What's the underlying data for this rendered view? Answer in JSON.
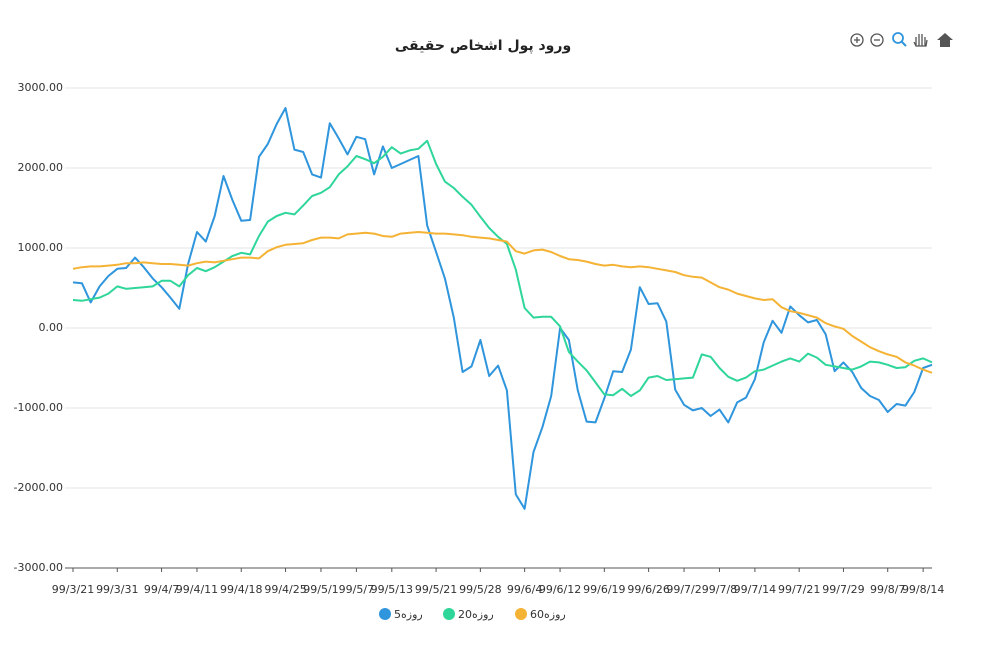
{
  "chart_data": {
    "type": "line",
    "title": "ورود پول اشخاص حقیقی",
    "categories": [
      "99/3/21",
      null,
      null,
      null,
      null,
      "99/3/31",
      null,
      null,
      null,
      null,
      "99/4/7",
      null,
      null,
      null,
      "99/4/11",
      null,
      null,
      null,
      null,
      "99/4/18",
      null,
      null,
      null,
      null,
      "99/4/25",
      null,
      null,
      null,
      "99/5/1",
      null,
      null,
      null,
      "99/5/7",
      null,
      null,
      null,
      "99/5/13",
      null,
      null,
      null,
      null,
      "99/5/21",
      null,
      null,
      null,
      null,
      "99/5/28",
      null,
      null,
      null,
      null,
      "99/6/4",
      null,
      null,
      null,
      "99/6/12",
      null,
      null,
      null,
      null,
      "99/6/19",
      null,
      null,
      null,
      null,
      "99/6/26",
      null,
      null,
      null,
      "99/7/2",
      null,
      null,
      null,
      "99/7/8",
      null,
      null,
      null,
      "99/7/14",
      null,
      null,
      null,
      null,
      "99/7/21",
      null,
      null,
      null,
      null,
      "99/7/29",
      null,
      null,
      null,
      null,
      "99/8/7",
      null,
      null,
      null,
      "99/8/14",
      null
    ],
    "series": [
      {
        "name": "روزه5",
        "color": "#2f95dc",
        "values": [
          570,
          560,
          320,
          520,
          650,
          740,
          750,
          880,
          760,
          620,
          510,
          380,
          240,
          800,
          1200,
          1080,
          1400,
          1900,
          1600,
          1340,
          1350,
          2140,
          2300,
          2550,
          2750,
          2230,
          2200,
          1920,
          1880,
          2560,
          2370,
          2170,
          2390,
          2360,
          1920,
          2270,
          2000,
          2050,
          2100,
          2150,
          1280,
          950,
          620,
          130,
          -550,
          -480,
          -150,
          -600,
          -470,
          -780,
          -2080,
          -2260,
          -1550,
          -1240,
          -850,
          0,
          -150,
          -780,
          -1170,
          -1180,
          -880,
          -540,
          -550,
          -270,
          510,
          300,
          310,
          80,
          -770,
          -960,
          -1030,
          -1000,
          -1100,
          -1020,
          -1180,
          -930,
          -870,
          -640,
          -180,
          90,
          -60,
          270,
          160,
          70,
          100,
          -80,
          -540,
          -430,
          -550,
          -750,
          -850,
          -900,
          -1050,
          -950,
          -970,
          -800,
          -500,
          -460
        ]
      },
      {
        "name": "روزه20",
        "color": "#2fd69a",
        "values": [
          350,
          340,
          360,
          380,
          430,
          520,
          490,
          500,
          510,
          520,
          590,
          590,
          520,
          660,
          750,
          710,
          760,
          830,
          900,
          940,
          920,
          1150,
          1330,
          1400,
          1440,
          1420,
          1530,
          1650,
          1690,
          1760,
          1920,
          2020,
          2150,
          2110,
          2060,
          2140,
          2260,
          2180,
          2220,
          2240,
          2340,
          2050,
          1830,
          1750,
          1640,
          1540,
          1390,
          1250,
          1140,
          1050,
          730,
          250,
          130,
          140,
          140,
          20,
          -300,
          -420,
          -530,
          -680,
          -830,
          -840,
          -760,
          -850,
          -780,
          -620,
          -600,
          -650,
          -640,
          -630,
          -620,
          -330,
          -360,
          -500,
          -610,
          -660,
          -620,
          -540,
          -520,
          -470,
          -420,
          -380,
          -420,
          -320,
          -370,
          -460,
          -480,
          -500,
          -520,
          -480,
          -420,
          -430,
          -460,
          -500,
          -490,
          -410,
          -380,
          -430
        ]
      },
      {
        "name": "روزه60",
        "color": "#f5b335",
        "values": [
          740,
          760,
          770,
          770,
          780,
          790,
          810,
          810,
          820,
          810,
          800,
          800,
          790,
          780,
          810,
          830,
          820,
          840,
          860,
          880,
          880,
          870,
          960,
          1010,
          1040,
          1050,
          1060,
          1100,
          1130,
          1130,
          1120,
          1170,
          1180,
          1190,
          1180,
          1150,
          1140,
          1180,
          1190,
          1200,
          1190,
          1180,
          1180,
          1170,
          1160,
          1140,
          1130,
          1120,
          1100,
          1080,
          960,
          930,
          970,
          980,
          950,
          900,
          860,
          850,
          830,
          800,
          780,
          790,
          770,
          760,
          770,
          760,
          740,
          720,
          700,
          660,
          640,
          630,
          570,
          510,
          480,
          430,
          400,
          370,
          350,
          360,
          260,
          210,
          190,
          160,
          130,
          60,
          20,
          -10,
          -100,
          -170,
          -240,
          -290,
          -330,
          -360,
          -430,
          -470,
          -520,
          -560
        ]
      }
    ],
    "ylim": [
      -3000,
      3000
    ],
    "yticks": [
      {
        "value": -3000,
        "label": "-3000.00"
      },
      {
        "value": -2000,
        "label": "-2000.00"
      },
      {
        "value": -1000,
        "label": "-1000.00"
      },
      {
        "value": 0,
        "label": "0.00"
      },
      {
        "value": 1000,
        "label": "1000.00"
      },
      {
        "value": 2000,
        "label": "2000.00"
      },
      {
        "value": 3000,
        "label": "3000.00"
      }
    ],
    "grid": true,
    "legend": "bottom"
  }
}
